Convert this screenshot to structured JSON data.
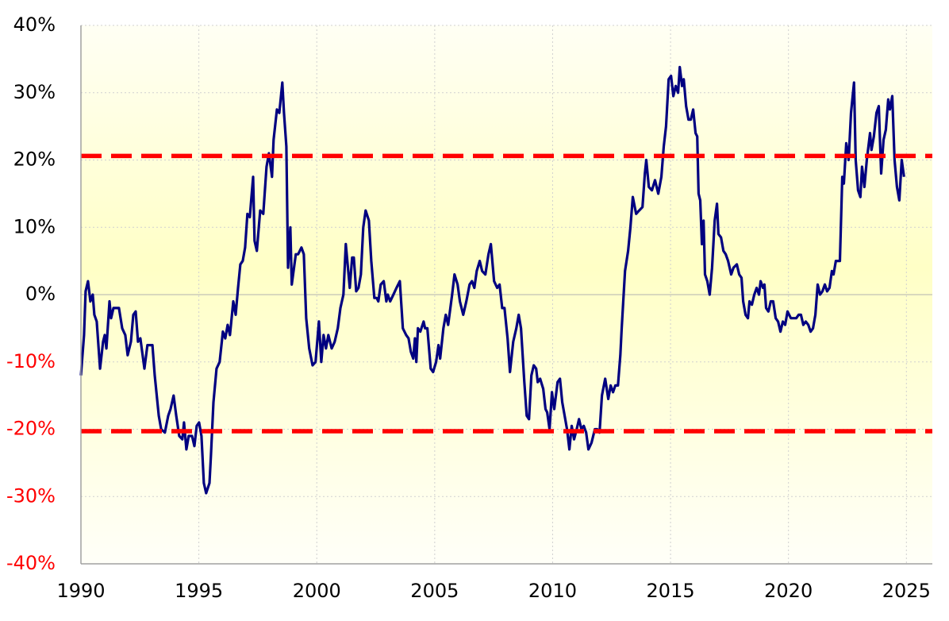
{
  "chart_data": {
    "type": "line",
    "xlim": [
      1990,
      2026.1
    ],
    "xticks": [
      1990,
      1995,
      2000,
      2005,
      2010,
      2015,
      2020,
      2025
    ],
    "ylim": [
      -40,
      40
    ],
    "yticks": [
      {
        "value": -40,
        "label": "-40%"
      },
      {
        "value": -30,
        "label": "-30%"
      },
      {
        "value": -20,
        "label": "-20%"
      },
      {
        "value": -10,
        "label": "-10%"
      },
      {
        "value": 0,
        "label": "0%"
      },
      {
        "value": 10,
        "label": "10%"
      },
      {
        "value": 20,
        "label": "20%"
      },
      {
        "value": 30,
        "label": "30%"
      },
      {
        "value": 40,
        "label": "40%"
      }
    ],
    "grid": true,
    "tick_color": "#000000",
    "negative_tick_color": "#ff0000",
    "reference_lines": [
      {
        "value": 20.6,
        "color": "#ff0000"
      },
      {
        "value": -20.3,
        "color": "#ff0000"
      }
    ],
    "series": [
      {
        "color": "#000080",
        "x": [
          1990.0,
          1990.13,
          1990.2,
          1990.3,
          1990.4,
          1990.5,
          1990.57,
          1990.67,
          1990.81,
          1990.94,
          1991.01,
          1991.08,
          1991.21,
          1991.28,
          1991.38,
          1991.61,
          1991.75,
          1991.88,
          1991.98,
          1992.12,
          1992.22,
          1992.32,
          1992.42,
          1992.52,
          1992.69,
          1992.82,
          1993.03,
          1993.13,
          1993.3,
          1993.4,
          1993.56,
          1993.7,
          1993.8,
          1993.93,
          1994.04,
          1994.17,
          1994.3,
          1994.37,
          1994.47,
          1994.57,
          1994.71,
          1994.81,
          1994.91,
          1995.01,
          1995.11,
          1995.21,
          1995.31,
          1995.45,
          1995.51,
          1995.62,
          1995.75,
          1995.88,
          1996.02,
          1996.12,
          1996.22,
          1996.32,
          1996.46,
          1996.56,
          1996.66,
          1996.76,
          1996.86,
          1996.96,
          1997.06,
          1997.16,
          1997.3,
          1997.36,
          1997.46,
          1997.6,
          1997.73,
          1997.87,
          1997.97,
          1998.1,
          1998.17,
          1998.31,
          1998.41,
          1998.54,
          1998.61,
          1998.71,
          1998.78,
          1998.88,
          1998.94,
          1999.11,
          1999.21,
          1999.35,
          1999.45,
          1999.55,
          1999.68,
          1999.82,
          1999.95,
          2000.09,
          2000.19,
          2000.29,
          2000.39,
          2000.49,
          2000.63,
          2000.76,
          2000.89,
          2001.0,
          2001.13,
          2001.23,
          2001.4,
          2001.5,
          2001.57,
          2001.67,
          2001.77,
          2001.87,
          2001.97,
          2002.07,
          2002.21,
          2002.31,
          2002.44,
          2002.54,
          2002.61,
          2002.71,
          2002.84,
          2002.95,
          2003.01,
          2003.11,
          2003.25,
          2003.38,
          2003.52,
          2003.65,
          2003.79,
          2003.89,
          2003.99,
          2004.09,
          2004.16,
          2004.22,
          2004.29,
          2004.39,
          2004.53,
          2004.59,
          2004.69,
          2004.83,
          2004.93,
          2005.06,
          2005.16,
          2005.23,
          2005.37,
          2005.47,
          2005.57,
          2005.74,
          2005.84,
          2005.97,
          2006.07,
          2006.21,
          2006.34,
          2006.48,
          2006.58,
          2006.68,
          2006.78,
          2006.91,
          2007.01,
          2007.15,
          2007.28,
          2007.38,
          2007.52,
          2007.65,
          2007.75,
          2007.86,
          2007.96,
          2008.09,
          2008.19,
          2008.33,
          2008.46,
          2008.56,
          2008.66,
          2008.8,
          2008.9,
          2009.0,
          2009.1,
          2009.2,
          2009.3,
          2009.37,
          2009.47,
          2009.6,
          2009.7,
          2009.77,
          2009.87,
          2009.97,
          2010.07,
          2010.21,
          2010.31,
          2010.41,
          2010.51,
          2010.61,
          2010.71,
          2010.81,
          2010.91,
          2011.02,
          2011.12,
          2011.22,
          2011.32,
          2011.42,
          2011.52,
          2011.65,
          2011.79,
          2011.89,
          2011.99,
          2012.09,
          2012.23,
          2012.36,
          2012.46,
          2012.56,
          2012.66,
          2012.77,
          2012.87,
          2012.93,
          2013.07,
          2013.2,
          2013.3,
          2013.4,
          2013.54,
          2013.67,
          2013.81,
          2013.91,
          2013.97,
          2014.08,
          2014.21,
          2014.34,
          2014.48,
          2014.61,
          2014.71,
          2014.81,
          2014.92,
          2015.02,
          2015.12,
          2015.22,
          2015.32,
          2015.39,
          2015.49,
          2015.56,
          2015.66,
          2015.76,
          2015.86,
          2015.96,
          2016.06,
          2016.13,
          2016.19,
          2016.26,
          2016.33,
          2016.4,
          2016.46,
          2016.56,
          2016.66,
          2016.76,
          2016.87,
          2016.97,
          2017.03,
          2017.14,
          2017.24,
          2017.34,
          2017.44,
          2017.57,
          2017.67,
          2017.81,
          2017.91,
          2018.01,
          2018.08,
          2018.18,
          2018.28,
          2018.35,
          2018.45,
          2018.55,
          2018.65,
          2018.75,
          2018.82,
          2018.92,
          2018.98,
          2019.05,
          2019.15,
          2019.25,
          2019.35,
          2019.46,
          2019.56,
          2019.66,
          2019.76,
          2019.86,
          2019.96,
          2020.1,
          2020.2,
          2020.33,
          2020.43,
          2020.53,
          2020.63,
          2020.73,
          2020.84,
          2020.94,
          2021.04,
          2021.14,
          2021.24,
          2021.34,
          2021.44,
          2021.54,
          2021.64,
          2021.74,
          2021.84,
          2021.91,
          2022.01,
          2022.11,
          2022.18,
          2022.28,
          2022.35,
          2022.45,
          2022.55,
          2022.65,
          2022.78,
          2022.85,
          2022.95,
          2023.05,
          2023.12,
          2023.22,
          2023.32,
          2023.46,
          2023.52,
          2023.62,
          2023.73,
          2023.83,
          2023.93,
          2024.03,
          2024.13,
          2024.23,
          2024.3,
          2024.4,
          2024.5,
          2024.6,
          2024.7,
          2024.8,
          2024.9
        ],
        "values": [
          -12,
          -6,
          0.5,
          2,
          -1,
          0,
          -3,
          -4,
          -11,
          -7,
          -6,
          -8,
          -1,
          -3.5,
          -2,
          -2,
          -5,
          -6,
          -9,
          -7,
          -3,
          -2.5,
          -7,
          -6.5,
          -11,
          -7.5,
          -7.5,
          -12,
          -18,
          -20,
          -20.5,
          -18,
          -17,
          -15,
          -18,
          -21,
          -21.5,
          -19,
          -23,
          -21,
          -21,
          -22.5,
          -19.5,
          -19,
          -21,
          -28,
          -29.5,
          -28,
          -24,
          -16,
          -11,
          -10,
          -5.5,
          -6.5,
          -4.5,
          -6,
          -1,
          -3,
          1,
          4.5,
          5,
          7,
          12,
          11.5,
          17.5,
          8,
          6.5,
          12.5,
          12,
          19,
          21,
          17.5,
          23,
          27.5,
          27,
          31.5,
          27,
          22,
          4,
          10,
          1.5,
          6,
          6,
          7,
          6,
          -3.5,
          -8,
          -10.5,
          -10,
          -4,
          -10,
          -6,
          -8,
          -6,
          -8,
          -7,
          -5,
          -2,
          0,
          7.5,
          1,
          5.5,
          5.5,
          0.5,
          1,
          3,
          10,
          12.5,
          11,
          5,
          -0.5,
          -0.5,
          -1,
          1.5,
          2,
          -1,
          0,
          -1,
          0,
          1,
          2,
          -5,
          -6,
          -6.5,
          -8.5,
          -9.5,
          -6.5,
          -10,
          -5,
          -5.5,
          -4,
          -5,
          -5,
          -11,
          -11.5,
          -10,
          -7.5,
          -9.5,
          -5,
          -3,
          -4.5,
          0,
          3,
          1.5,
          -1,
          -3,
          -1,
          1.5,
          2,
          1,
          3.5,
          5,
          3.5,
          3,
          6,
          7.5,
          2,
          1,
          1.5,
          -2,
          -2,
          -6.5,
          -11.5,
          -7,
          -5,
          -3,
          -5,
          -13,
          -18,
          -18.5,
          -12,
          -10.5,
          -11,
          -13,
          -12.5,
          -14,
          -17,
          -17.5,
          -20,
          -14.5,
          -17,
          -13,
          -12.5,
          -16,
          -18,
          -20,
          -23,
          -19.5,
          -21.5,
          -20,
          -18.5,
          -20,
          -19.5,
          -20.5,
          -23,
          -22,
          -20,
          -20,
          -20.5,
          -15,
          -12.5,
          -15.5,
          -13.5,
          -14.5,
          -13.5,
          -13.5,
          -9,
          -5,
          3.5,
          6.5,
          10,
          14.5,
          12,
          12.5,
          13,
          18,
          20,
          16,
          15.5,
          17,
          15,
          17.5,
          22,
          25,
          32,
          32.5,
          29.5,
          31,
          30,
          33.8,
          31,
          32,
          28,
          26,
          26,
          27.5,
          24,
          23.5,
          15,
          14,
          7.5,
          11,
          3,
          2,
          0,
          4,
          11,
          13.5,
          9,
          8.5,
          6.5,
          6,
          5,
          3,
          4,
          4.5,
          3,
          2.5,
          -1,
          -3,
          -3.5,
          -1,
          -1.5,
          0,
          1,
          0,
          2,
          1,
          1.5,
          -2,
          -2.5,
          -1,
          -1,
          -3.5,
          -4,
          -5.5,
          -4,
          -4.5,
          -2.5,
          -3.5,
          -3.5,
          -3.5,
          -3,
          -3,
          -4.5,
          -4,
          -4.5,
          -5.5,
          -5,
          -3,
          1.5,
          0,
          0.5,
          1.5,
          0.5,
          1,
          3.5,
          3,
          5,
          5,
          5,
          17.5,
          16.5,
          22.5,
          20,
          27,
          31.5,
          20,
          15.5,
          14.5,
          19,
          16,
          20,
          24,
          21.5,
          23.5,
          27,
          28,
          18,
          23,
          24.5,
          29,
          27.5,
          29.5,
          20,
          16,
          14,
          20,
          17.5
        ]
      }
    ]
  }
}
